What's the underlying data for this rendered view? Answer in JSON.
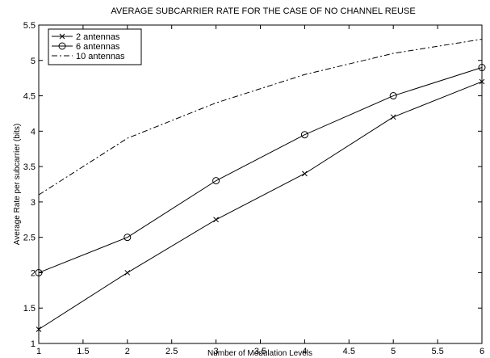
{
  "chart_data": {
    "type": "line",
    "title": "AVERAGE SUBCARRIER RATE FOR THE CASE OF NO CHANNEL REUSE",
    "xlabel": "Number of Modulation Levels",
    "ylabel": "Average Rate per subcarrier (bits)",
    "xlim": [
      1,
      6
    ],
    "ylim": [
      1,
      5.5
    ],
    "x_ticks": [
      "1",
      "1.5",
      "2",
      "2.5",
      "3",
      "3.5",
      "4",
      "4.5",
      "5",
      "5.5",
      "6"
    ],
    "y_ticks": [
      "1",
      "1.5",
      "2",
      "2.5",
      "3",
      "3.5",
      "4",
      "4.5",
      "5",
      "5.5"
    ],
    "grid": false,
    "legend_position": "top-left",
    "x": [
      1,
      2,
      3,
      4,
      5,
      6
    ],
    "series": [
      {
        "name": "2 antennas",
        "values": [
          1.2,
          2.0,
          2.75,
          3.4,
          4.2,
          4.7
        ],
        "marker": "x",
        "line_style": "solid",
        "color": "#000000"
      },
      {
        "name": "6 antennas",
        "values": [
          2.0,
          2.5,
          3.3,
          3.95,
          4.5,
          4.9
        ],
        "marker": "o",
        "line_style": "solid",
        "color": "#000000"
      },
      {
        "name": "10 antennas",
        "values": [
          3.1,
          3.9,
          4.4,
          4.8,
          5.1,
          5.3
        ],
        "marker": "none",
        "line_style": "dash-dot",
        "color": "#000000"
      }
    ]
  }
}
